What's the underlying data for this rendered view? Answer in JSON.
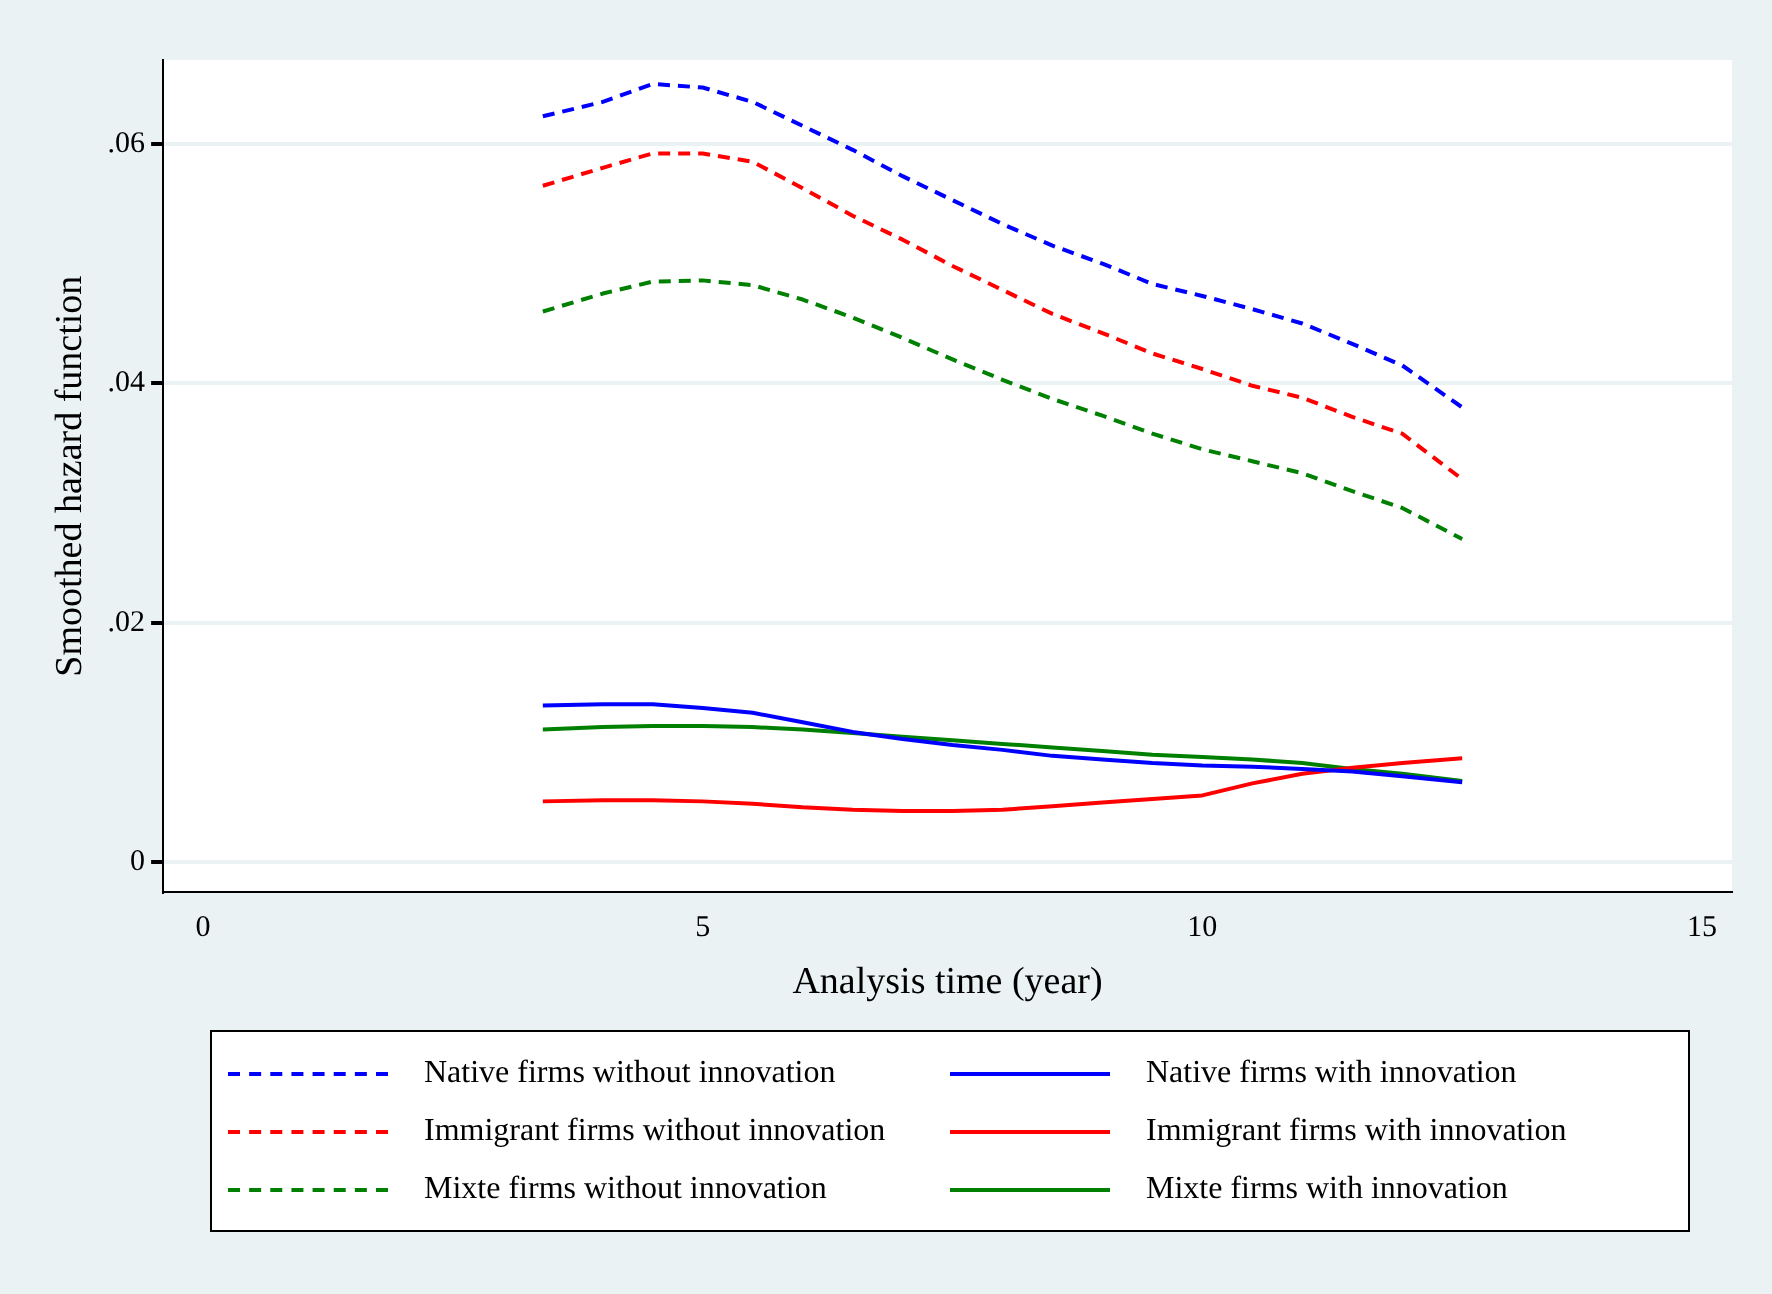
{
  "chart_data": {
    "type": "line",
    "xlabel": "Analysis time (year)",
    "ylabel": "Smoothed hazard function",
    "x": [
      3.4,
      4,
      4.5,
      5,
      5.5,
      6,
      6.5,
      7,
      7.5,
      8,
      8.5,
      9,
      9.5,
      10,
      10.5,
      11,
      11.5,
      12,
      12.6
    ],
    "xlim": [
      -0.4,
      15.3
    ],
    "xticks": [
      0,
      5,
      10,
      15
    ],
    "ylim": [
      -0.0025,
      0.067
    ],
    "yticks": [
      {
        "value": 0,
        "label": "0"
      },
      {
        "value": 0.02,
        "label": ".02"
      },
      {
        "value": 0.04,
        "label": ".04"
      },
      {
        "value": 0.06,
        "label": ".06"
      }
    ],
    "grid": "y",
    "legend": "bottom",
    "marker": "none",
    "series": [
      {
        "name": "Native firms without innovation",
        "color": "#0000ff",
        "line_style": "dashed",
        "values": [
          0.0623,
          0.0635,
          0.065,
          0.0647,
          0.0635,
          0.0615,
          0.0595,
          0.0573,
          0.0553,
          0.0533,
          0.0515,
          0.05,
          0.0483,
          0.0473,
          0.0462,
          0.045,
          0.0433,
          0.0415,
          0.038
        ]
      },
      {
        "name": "Immigrant firms without innovation",
        "color": "#ff0000",
        "line_style": "dashed",
        "values": [
          0.0565,
          0.058,
          0.0592,
          0.0592,
          0.0585,
          0.0563,
          0.054,
          0.052,
          0.0498,
          0.0478,
          0.0458,
          0.0442,
          0.0425,
          0.0412,
          0.0398,
          0.0388,
          0.0372,
          0.0358,
          0.032
        ]
      },
      {
        "name": "Mixte firms without innovation",
        "color": "#008000",
        "line_style": "dashed",
        "values": [
          0.046,
          0.0475,
          0.0485,
          0.0486,
          0.0482,
          0.047,
          0.0455,
          0.0438,
          0.042,
          0.0403,
          0.0387,
          0.0373,
          0.0358,
          0.0345,
          0.0335,
          0.0325,
          0.031,
          0.0296,
          0.027
        ]
      },
      {
        "name": "Native firms with innovation",
        "color": "#0000ff",
        "line_style": "solid",
        "values": [
          0.0131,
          0.0132,
          0.0132,
          0.0129,
          0.0125,
          0.0117,
          0.0109,
          0.0103,
          0.0098,
          0.0094,
          0.0089,
          0.0086,
          0.0083,
          0.0081,
          0.008,
          0.0078,
          0.0076,
          0.0072,
          0.0067
        ]
      },
      {
        "name": "Immigrant firms with innovation",
        "color": "#ff0000",
        "line_style": "solid",
        "values": [
          0.0051,
          0.0052,
          0.0052,
          0.0051,
          0.0049,
          0.0046,
          0.0044,
          0.0043,
          0.0043,
          0.0044,
          0.0047,
          0.005,
          0.0053,
          0.0056,
          0.0066,
          0.0074,
          0.0079,
          0.0083,
          0.0087
        ]
      },
      {
        "name": "Mixte firms with innovation",
        "color": "#008000",
        "line_style": "solid",
        "values": [
          0.0111,
          0.0113,
          0.0114,
          0.0114,
          0.0113,
          0.0111,
          0.0108,
          0.0105,
          0.0102,
          0.0099,
          0.0096,
          0.0093,
          0.009,
          0.0088,
          0.0086,
          0.0083,
          0.0078,
          0.0074,
          0.0068
        ]
      }
    ]
  }
}
